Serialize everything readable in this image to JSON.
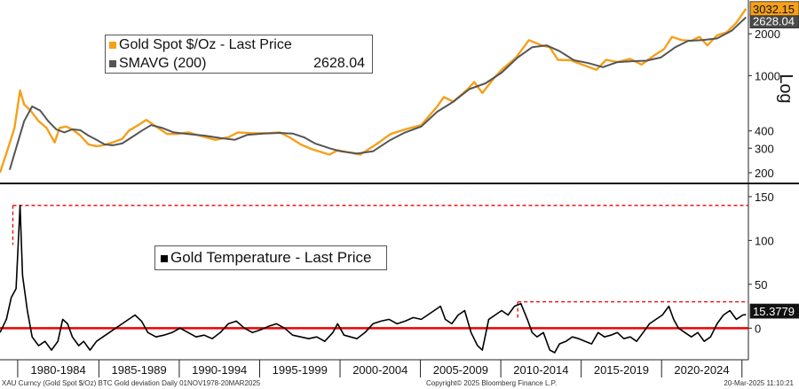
{
  "chart_data": [
    {
      "type": "line",
      "panel": "top",
      "y_scale": "log",
      "y_axis_label": "Log",
      "ylim": [
        175,
        3400
      ],
      "yticks": [
        200,
        300,
        400,
        1000,
        2000
      ],
      "legend": {
        "placement": "top-left"
      },
      "series": [
        {
          "name": "Gold Spot $/Oz - Last Price",
          "color": "#f5a01a",
          "last_value_label": "3032.15",
          "x": [
            1978.8,
            1979.3,
            1979.7,
            1980.05,
            1980.3,
            1980.7,
            1981.2,
            1981.7,
            1982.2,
            1982.5,
            1982.9,
            1983.3,
            1983.8,
            1984.3,
            1984.8,
            1985.2,
            1985.8,
            1986.4,
            1986.8,
            1987.4,
            1987.9,
            1988.5,
            1989.2,
            1989.8,
            1990.5,
            1991.2,
            1992.2,
            1993.0,
            1993.6,
            1994.5,
            1995.5,
            1996.2,
            1996.8,
            1997.5,
            1998.2,
            1999.3,
            1999.8,
            2000.5,
            2001.2,
            2002.2,
            2003.1,
            2004.0,
            2005.0,
            2006.0,
            2006.4,
            2007.0,
            2007.9,
            2008.3,
            2008.8,
            2009.5,
            2010.0,
            2010.9,
            2011.7,
            2012.5,
            2013.0,
            2013.5,
            2014.3,
            2015.0,
            2015.9,
            2016.5,
            2017.2,
            2018.0,
            2018.7,
            2019.5,
            2020.1,
            2020.6,
            2021.2,
            2021.8,
            2022.3,
            2022.8,
            2023.4,
            2024.0,
            2024.6,
            2025.2
          ],
          "y": [
            200,
            300,
            420,
            780,
            620,
            560,
            470,
            420,
            330,
            420,
            430,
            410,
            370,
            320,
            310,
            315,
            330,
            350,
            400,
            440,
            480,
            430,
            380,
            380,
            390,
            370,
            345,
            360,
            390,
            385,
            385,
            390,
            360,
            320,
            295,
            270,
            290,
            280,
            270,
            320,
            380,
            410,
            440,
            600,
            700,
            650,
            800,
            900,
            750,
            950,
            1100,
            1350,
            1800,
            1650,
            1600,
            1300,
            1290,
            1200,
            1100,
            1300,
            1250,
            1320,
            1200,
            1400,
            1550,
            1900,
            1800,
            1780,
            1900,
            1650,
            1950,
            2050,
            2400,
            3032.15
          ]
        },
        {
          "name": "SMAVG (200)",
          "color": "#555555",
          "legend_value": "2628.04",
          "last_value_label": "2628.04",
          "x": [
            1979.4,
            1979.8,
            1980.3,
            1980.8,
            1981.3,
            1981.8,
            1982.3,
            1982.8,
            1983.3,
            1983.8,
            1984.3,
            1984.8,
            1985.3,
            1985.8,
            1986.4,
            1987.0,
            1987.6,
            1988.2,
            1988.9,
            1989.6,
            1990.5,
            1991.5,
            1992.5,
            1993.4,
            1994.2,
            1995.2,
            1996.2,
            1997.0,
            1997.7,
            1998.4,
            1999.3,
            2000.0,
            2001.0,
            2002.0,
            2003.0,
            2004.0,
            2005.0,
            2006.0,
            2007.0,
            2008.0,
            2009.0,
            2010.0,
            2011.0,
            2011.9,
            2012.8,
            2013.6,
            2014.5,
            2015.4,
            2016.3,
            2017.2,
            2018.1,
            2019.0,
            2019.9,
            2020.8,
            2021.6,
            2022.5,
            2023.4,
            2024.3,
            2025.2
          ],
          "y": [
            210,
            300,
            470,
            600,
            560,
            470,
            410,
            390,
            410,
            405,
            370,
            345,
            320,
            315,
            325,
            360,
            400,
            440,
            420,
            390,
            380,
            370,
            355,
            345,
            375,
            383,
            387,
            383,
            360,
            325,
            300,
            285,
            275,
            285,
            340,
            390,
            430,
            550,
            650,
            800,
            880,
            1050,
            1350,
            1600,
            1650,
            1500,
            1290,
            1230,
            1150,
            1250,
            1270,
            1280,
            1350,
            1600,
            1780,
            1800,
            1850,
            2100,
            2628.04
          ]
        }
      ]
    },
    {
      "type": "line",
      "panel": "bottom",
      "ylim": [
        -30,
        160
      ],
      "yticks": [
        0,
        50,
        100,
        150
      ],
      "legend": {
        "placement": "top-left"
      },
      "reference_lines": [
        {
          "y": 0,
          "style": "solid",
          "color": "#ee0000"
        },
        {
          "y": 140,
          "style": "dashed",
          "color": "#ee0000",
          "x_from": 1979.6
        },
        {
          "y": 30,
          "style": "dashed",
          "color": "#ee0000",
          "x_from": 2011.0
        }
      ],
      "series": [
        {
          "name": "Gold Temperature - Last Price",
          "color": "#000000",
          "last_value_label": "15.3779",
          "x": [
            1978.8,
            1979.2,
            1979.5,
            1979.8,
            1980.05,
            1980.2,
            1980.5,
            1980.8,
            1981.2,
            1981.6,
            1982.0,
            1982.4,
            1982.7,
            1983.0,
            1983.3,
            1983.7,
            1984.0,
            1984.4,
            1984.8,
            1985.2,
            1985.6,
            1986.0,
            1986.4,
            1986.8,
            1987.2,
            1987.6,
            1988.0,
            1988.5,
            1989.0,
            1989.5,
            1990.0,
            1990.5,
            1991.0,
            1991.5,
            1992.0,
            1992.5,
            1993.0,
            1993.5,
            1994.0,
            1994.5,
            1995.0,
            1995.5,
            1996.0,
            1996.5,
            1997.0,
            1997.5,
            1998.0,
            1998.5,
            1999.0,
            1999.5,
            1999.8,
            2000.2,
            2000.6,
            2001.0,
            2001.5,
            2002.0,
            2002.5,
            2003.0,
            2003.5,
            2004.0,
            2004.5,
            2005.0,
            2005.4,
            2005.8,
            2006.2,
            2006.5,
            2006.9,
            2007.3,
            2007.7,
            2008.1,
            2008.5,
            2008.8,
            2009.2,
            2009.6,
            2010.0,
            2010.4,
            2010.8,
            2011.2,
            2011.6,
            2011.9,
            2012.2,
            2012.6,
            2013.0,
            2013.3,
            2013.6,
            2014.0,
            2014.4,
            2014.8,
            2015.2,
            2015.6,
            2016.0,
            2016.4,
            2016.8,
            2017.2,
            2017.6,
            2018.0,
            2018.4,
            2018.8,
            2019.2,
            2019.6,
            2020.0,
            2020.4,
            2020.7,
            2021.0,
            2021.4,
            2021.8,
            2022.2,
            2022.6,
            2023.0,
            2023.4,
            2023.8,
            2024.2,
            2024.6,
            2025.0,
            2025.2
          ],
          "y": [
            -5,
            10,
            35,
            45,
            140,
            60,
            20,
            -10,
            -20,
            -15,
            -25,
            -15,
            10,
            5,
            -10,
            -20,
            -15,
            -25,
            -15,
            -10,
            -5,
            0,
            5,
            10,
            15,
            8,
            -5,
            -10,
            -8,
            -5,
            0,
            -5,
            -10,
            -8,
            -12,
            -5,
            5,
            8,
            0,
            -5,
            -2,
            2,
            5,
            0,
            -8,
            -10,
            -12,
            -10,
            -15,
            -5,
            5,
            -8,
            -10,
            -12,
            -5,
            5,
            8,
            10,
            5,
            8,
            12,
            10,
            15,
            20,
            25,
            10,
            5,
            15,
            20,
            -5,
            -20,
            -25,
            10,
            15,
            20,
            15,
            25,
            28,
            10,
            -5,
            -10,
            -5,
            -25,
            -28,
            -18,
            -15,
            -10,
            -12,
            -15,
            -18,
            -5,
            -10,
            -8,
            -5,
            -12,
            -10,
            -15,
            -5,
            5,
            10,
            15,
            25,
            10,
            0,
            -5,
            -10,
            -5,
            -15,
            -10,
            5,
            15,
            20,
            10,
            15,
            15.3779
          ]
        }
      ]
    },
    {
      "type": "table",
      "panel": "x_axis",
      "x_tick_labels": [
        "1980-1984",
        "1985-1989",
        "1990-1994",
        "1995-1999",
        "2000-2004",
        "2005-2009",
        "2010-2014",
        "2015-2019",
        "2020-2024"
      ]
    }
  ],
  "legend_top": {
    "row1_label": "Gold Spot $/Oz - Last Price",
    "row2_label": "SMAVG (200)",
    "row2_value": "2628.04"
  },
  "legend_bottom": {
    "row1_label": "Gold Temperature - Last Price"
  },
  "footer": {
    "left": "XAU Curncy (Gold Spot   $/Oz) BTC Gold deviation  Daily 01NOV1978-20MAR2025",
    "center": "Copyright© 2025 Bloomberg Finance L.P.",
    "right": "20-Mar-2025 11:10:21"
  }
}
